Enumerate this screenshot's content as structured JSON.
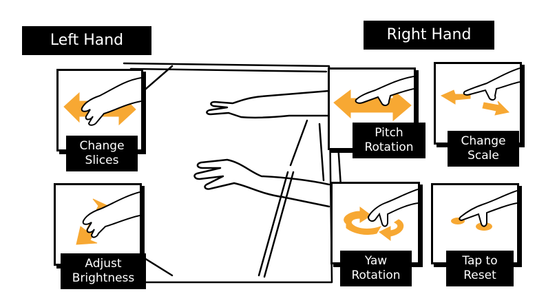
{
  "titles": {
    "left": "Left Hand",
    "right": "Right Hand"
  },
  "gestures": {
    "change_slices": "Change\nSlices",
    "adjust_brightness": "Adjust\nBrightness",
    "pitch_rotation": "Pitch\nRotation",
    "change_scale": "Change\nScale",
    "yaw_rotation": "Yaw\nRotation",
    "tap_to_reset": "Tap to\nReset"
  },
  "colors": {
    "arrow": "#F7A833",
    "label_bg": "#000000",
    "outline": "#000000"
  }
}
